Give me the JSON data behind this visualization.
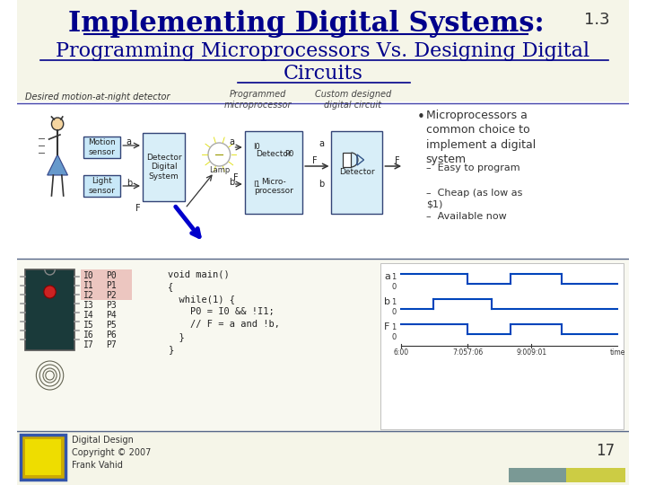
{
  "title_main": "Implementing Digital Systems:",
  "title_number": "1.3",
  "title_sub1": "Programming Microprocessors Vs. Designing Digital",
  "title_sub2": "Circuits",
  "bg_color": "#ffffff",
  "title_color": "#00008B",
  "footer_text": "Digital Design\nCopyright © 2007\nFrank Vahid",
  "page_number": "17",
  "desired_label": "Desired motion-at-night detector",
  "programmed_label": "Programmed\nmicroprocessor",
  "custom_label": "Custom designed\ndigital circuit",
  "bullet_title": "Microprocessors a\ncommon choice to\nimplement a digital\nsystem",
  "bullet_items": [
    "Easy to program",
    "Cheap (as low as\n$1)",
    "Available now"
  ],
  "io_left": [
    "I0",
    "I1",
    "I2",
    "I3",
    "I4",
    "I5",
    "I6",
    "I7"
  ],
  "io_right": [
    "P0",
    "P1",
    "P2",
    "P3",
    "P4",
    "P5",
    "P6",
    "P7"
  ],
  "code_lines": [
    "void main()",
    "{",
    "  while(1) {",
    "    P0 = I0 && !I1;",
    "    // F = a and !b,",
    "  }",
    "}"
  ],
  "time_labels": [
    "6:00",
    "7:057:06",
    "9:009:01",
    "time"
  ]
}
